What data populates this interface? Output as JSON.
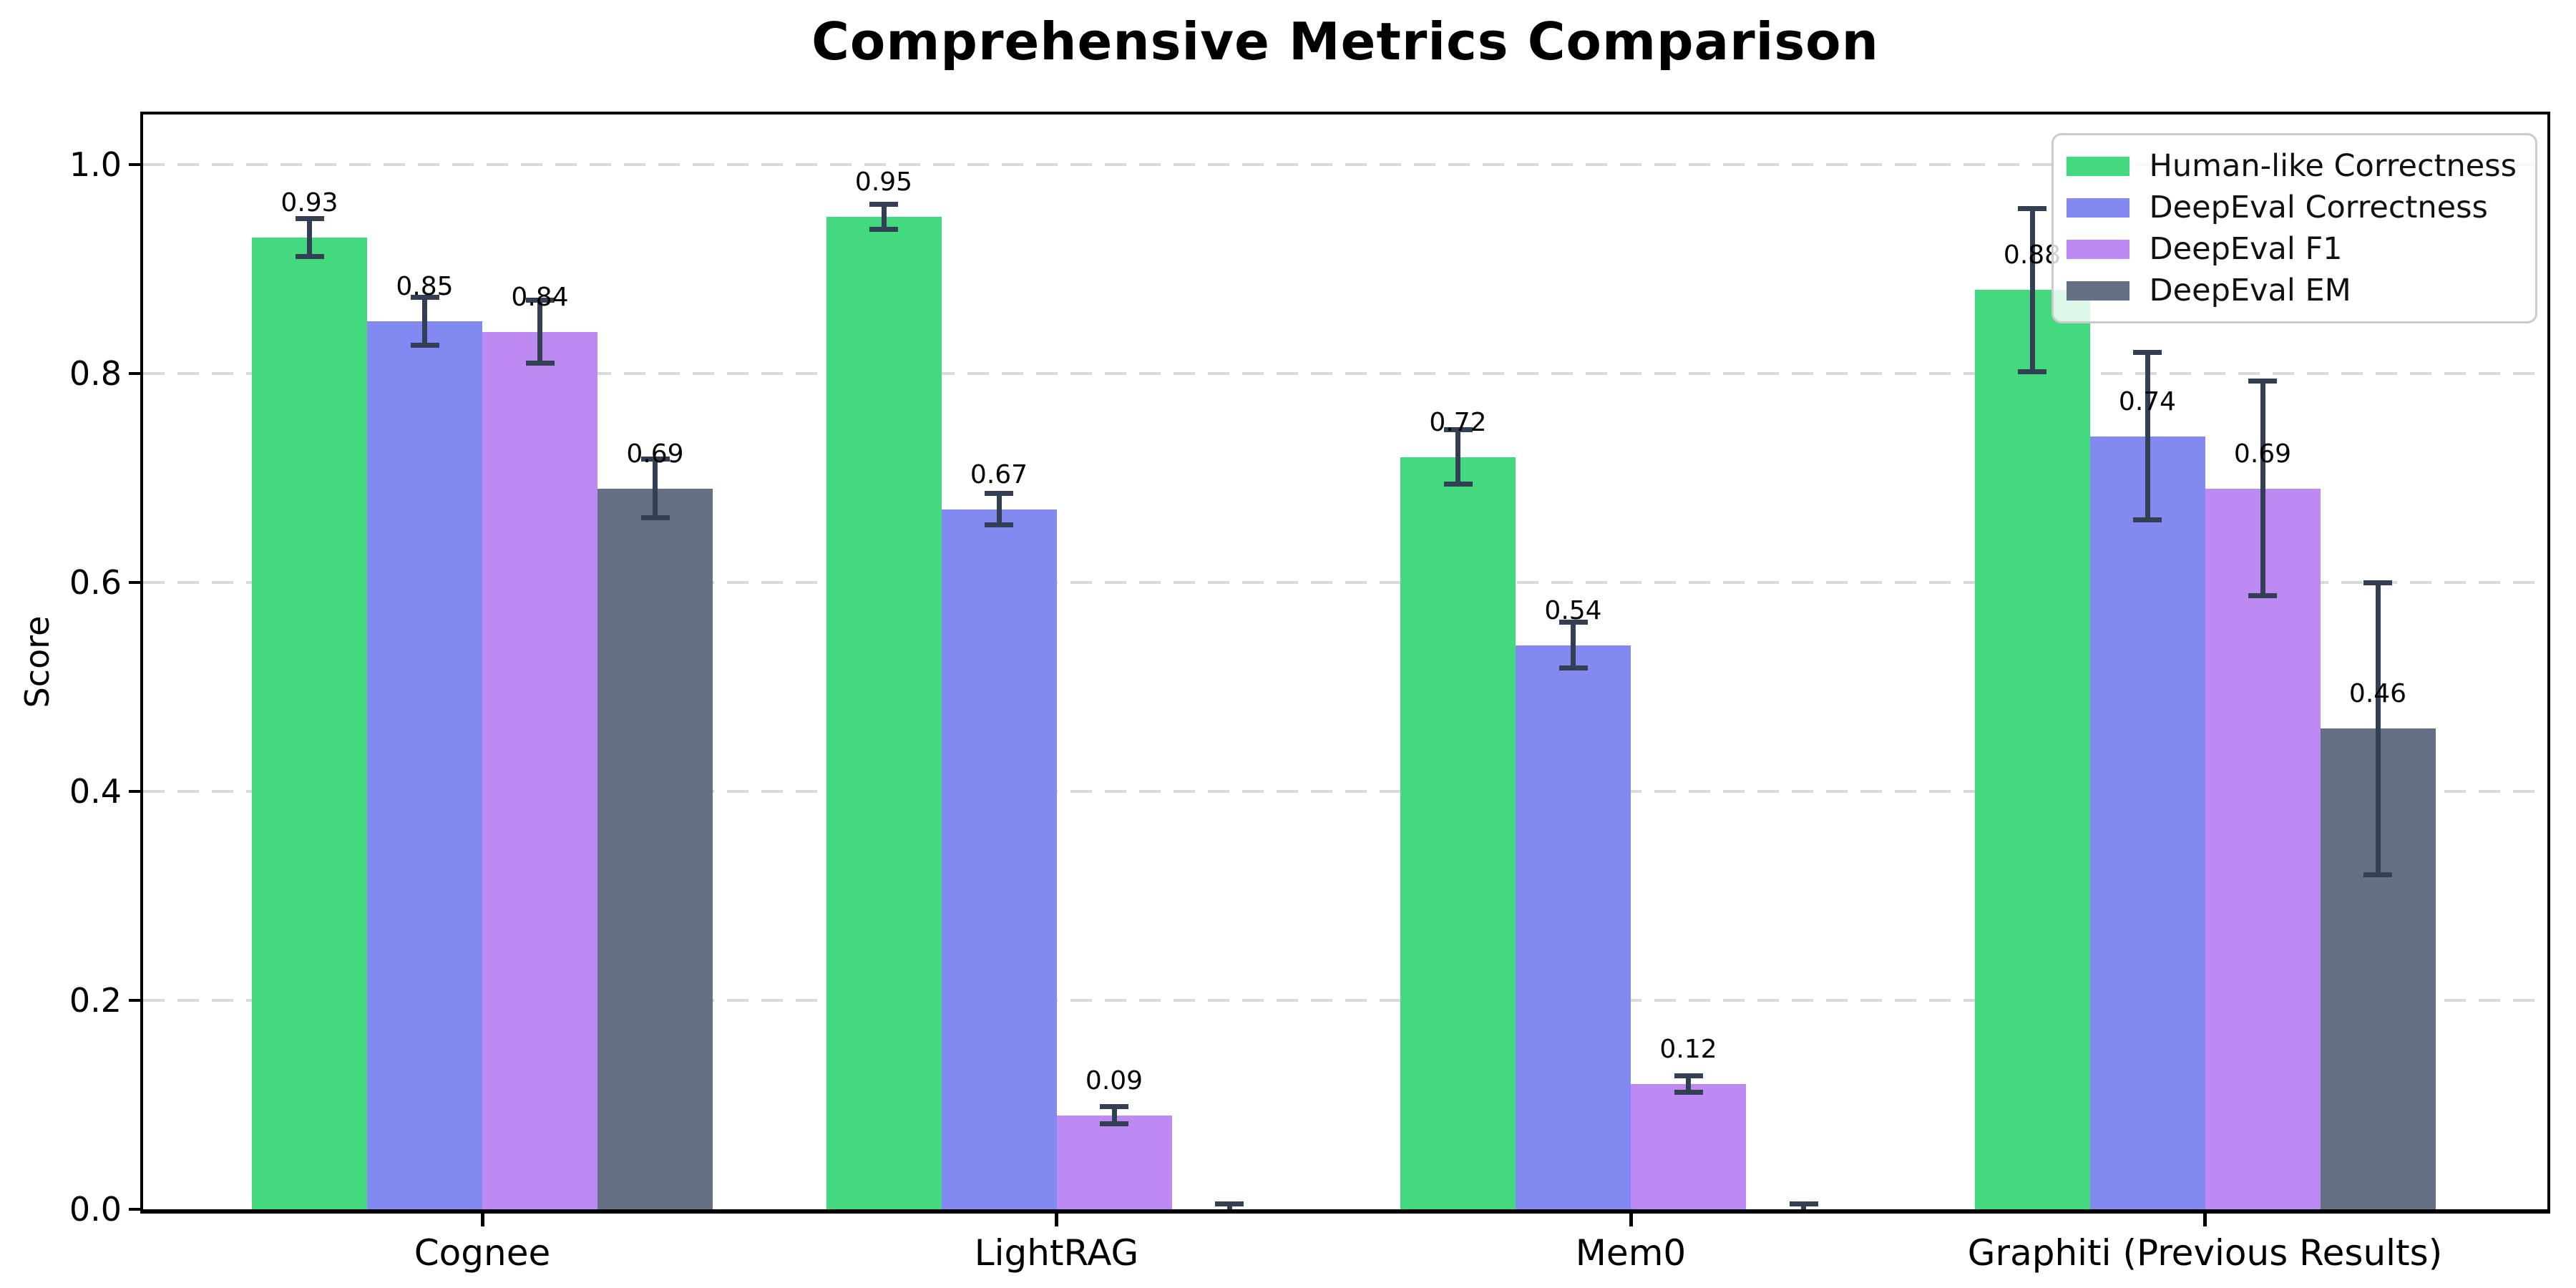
{
  "chart_data": {
    "type": "bar",
    "title": "Comprehensive Metrics Comparison",
    "xlabel": "",
    "ylabel": "Score",
    "categories": [
      "Cognee",
      "LightRAG",
      "Mem0",
      "Graphiti (Previous Results)"
    ],
    "series": [
      {
        "name": "Human-like Correctness",
        "color": "#43d97f",
        "values": [
          0.93,
          0.95,
          0.72,
          0.88
        ],
        "errors": [
          0.018,
          0.012,
          0.026,
          0.078
        ],
        "bar_labels": [
          "0.93",
          "0.95",
          "0.72",
          "0.88"
        ]
      },
      {
        "name": "DeepEval Correctness",
        "color": "#8289f0",
        "values": [
          0.85,
          0.67,
          0.54,
          0.74
        ],
        "errors": [
          0.023,
          0.015,
          0.022,
          0.08
        ],
        "bar_labels": [
          "0.85",
          "0.67",
          "0.54",
          "0.74"
        ]
      },
      {
        "name": "DeepEval F1",
        "color": "#bd89f2",
        "values": [
          0.84,
          0.09,
          0.12,
          0.69
        ],
        "errors": [
          0.03,
          0.008,
          0.008,
          0.103
        ],
        "bar_labels": [
          "0.84",
          "0.09",
          "0.12",
          "0.69"
        ]
      },
      {
        "name": "DeepEval EM",
        "color": "#667085",
        "values": [
          0.69,
          0.0,
          0.0,
          0.46
        ],
        "errors": [
          0.028,
          0.005,
          0.005,
          0.14
        ],
        "bar_labels": [
          "0.69",
          "",
          "",
          "0.46"
        ]
      }
    ],
    "yticks": [
      {
        "label": "0.0",
        "value": 0.0
      },
      {
        "label": "0.2",
        "value": 0.2
      },
      {
        "label": "0.4",
        "value": 0.4
      },
      {
        "label": "0.6",
        "value": 0.6
      },
      {
        "label": "0.8",
        "value": 0.8
      },
      {
        "label": "1.0",
        "value": 1.0
      }
    ],
    "ylim": [
      0,
      1.048
    ],
    "grid": "horizontal-dashed",
    "gridline_values": [
      0.2,
      0.4,
      0.6,
      0.8,
      1.0
    ],
    "legend_position": "upper right",
    "colors": {
      "errorbar": "#333f52",
      "gridline": "#d9d9d9",
      "axes_spine": "#000000",
      "legend_border": "#cbcbcb",
      "background": "#ffffff"
    }
  }
}
